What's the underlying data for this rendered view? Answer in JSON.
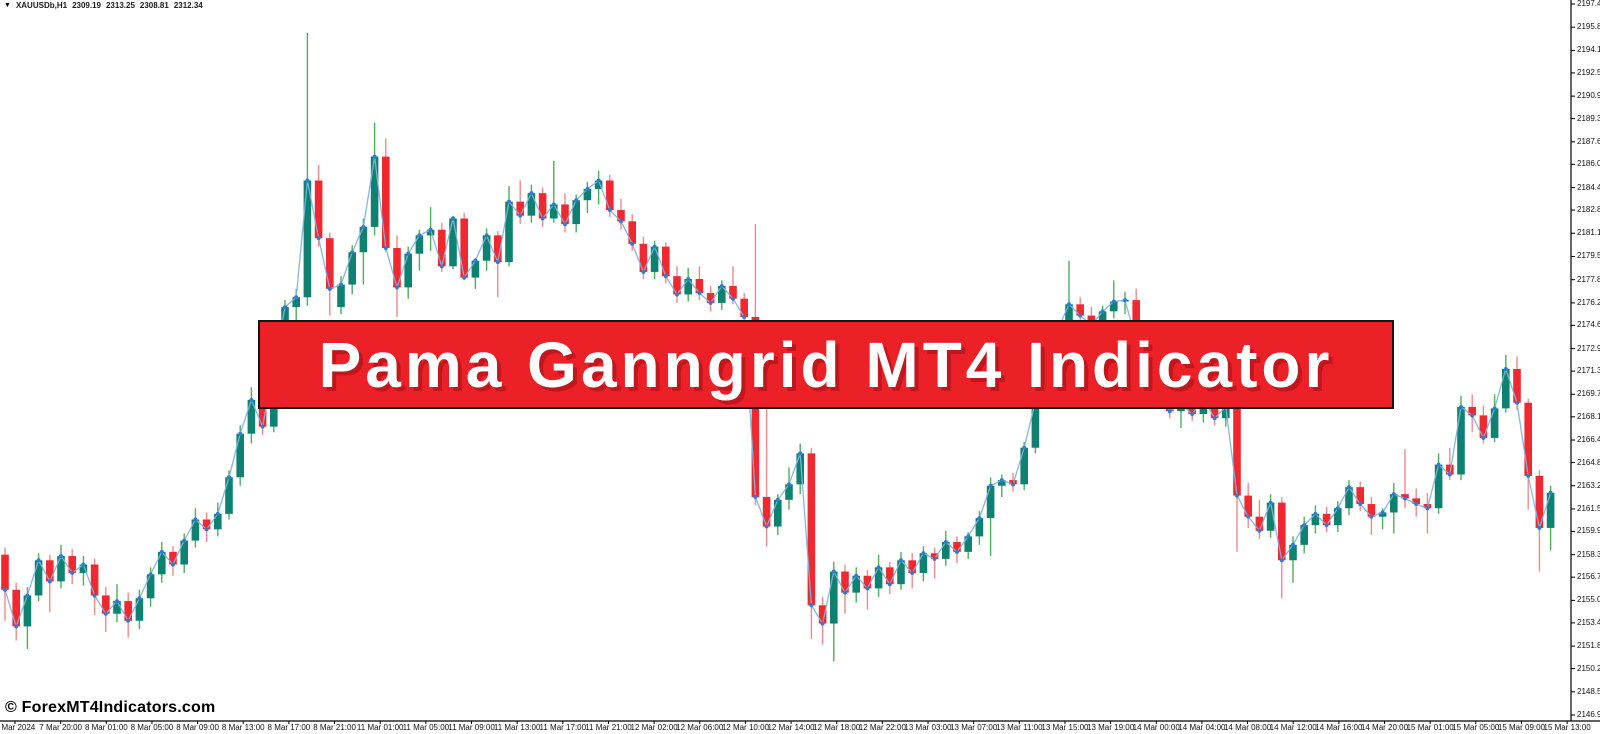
{
  "title_bar": {
    "symbol_timeframe": "XAUUSDb,H1",
    "open": "2309.19",
    "high": "2313.25",
    "low": "2308.81",
    "close": "2312.34"
  },
  "banner": {
    "text": "Pama Ganngrid MT4 Indicator"
  },
  "watermark": {
    "text": "© ForexMT4Indicators.com"
  },
  "colors": {
    "bull_body": "#0f8170",
    "bull_wick": "#4fae5c",
    "bear_body": "#f0282f",
    "bear_wick": "#f2888d",
    "indicator_line": "#7fb3e0",
    "indicator_dot": "#2d7dd2",
    "banner_bg": "#ec2027",
    "banner_border": "#141414",
    "banner_text": "#ffffff",
    "axis_line": "#000000",
    "axis_text": "#111111",
    "background": "#ffffff"
  },
  "chart_data": {
    "type": "candlestick",
    "symbol": "XAUUSDb",
    "timeframe": "H1",
    "indicator_name": "Pama GannGrid line (dots on closes)",
    "price_axis_range": [
      2146.9,
      2197.45
    ],
    "grid": "off",
    "price_axis_labels": [
      "2197.45",
      "2195.80",
      "2194.15",
      "2192.55",
      "2190.90",
      "2189.30",
      "2187.65",
      "2186.05",
      "2184.40",
      "2182.80",
      "2181.15",
      "2179.50",
      "2177.85",
      "2176.20",
      "2174.60",
      "2172.95",
      "2171.35",
      "2169.70",
      "2168.10",
      "2166.45",
      "2164.85",
      "2163.20",
      "2161.55",
      "2159.95",
      "2158.30",
      "2156.70",
      "2155.05",
      "2153.45",
      "2151.80",
      "2150.20",
      "2148.55",
      "2146.90"
    ],
    "time_axis_labels": [
      "7 Mar 2024",
      "7 Mar 20:00",
      "8 Mar 01:00",
      "8 Mar 05:00",
      "8 Mar 09:00",
      "8 Mar 13:00",
      "8 Mar 17:00",
      "8 Mar 21:00",
      "11 Mar 01:00",
      "11 Mar 05:00",
      "11 Mar 09:00",
      "11 Mar 13:00",
      "11 Mar 17:00",
      "11 Mar 21:00",
      "12 Mar 02:00",
      "12 Mar 06:00",
      "12 Mar 10:00",
      "12 Mar 14:00",
      "12 Mar 18:00",
      "12 Mar 22:00",
      "13 Mar 03:00",
      "13 Mar 07:00",
      "13 Mar 11:00",
      "13 Mar 15:00",
      "13 Mar 19:00",
      "14 Mar 00:00",
      "14 Mar 04:00",
      "14 Mar 08:00",
      "14 Mar 12:00",
      "14 Mar 16:00",
      "14 Mar 20:00",
      "15 Mar 01:00",
      "15 Mar 05:00",
      "15 Mar 09:00",
      "15 Mar 13:00"
    ],
    "candles_ohlc": [
      [
        2158.3,
        2158.8,
        2153.6,
        2155.8
      ],
      [
        2155.8,
        2156.3,
        2152.2,
        2153.2
      ],
      [
        2153.2,
        2156.0,
        2151.6,
        2155.4
      ],
      [
        2155.4,
        2158.4,
        2155.0,
        2157.9
      ],
      [
        2157.9,
        2158.3,
        2154.2,
        2156.4
      ],
      [
        2156.4,
        2159.0,
        2155.9,
        2158.2
      ],
      [
        2158.2,
        2158.7,
        2156.2,
        2157.0
      ],
      [
        2157.0,
        2158.2,
        2156.1,
        2157.6
      ],
      [
        2157.6,
        2158.0,
        2154.0,
        2155.4
      ],
      [
        2155.4,
        2156.0,
        2152.8,
        2154.1
      ],
      [
        2154.1,
        2156.2,
        2153.5,
        2155.0
      ],
      [
        2155.0,
        2155.6,
        2152.4,
        2153.6
      ],
      [
        2153.6,
        2155.8,
        2153.0,
        2155.2
      ],
      [
        2155.2,
        2157.4,
        2154.6,
        2156.9
      ],
      [
        2156.9,
        2159.2,
        2156.3,
        2158.5
      ],
      [
        2158.5,
        2158.9,
        2156.8,
        2157.6
      ],
      [
        2157.6,
        2159.8,
        2157.0,
        2159.3
      ],
      [
        2159.3,
        2161.6,
        2158.8,
        2160.8
      ],
      [
        2160.8,
        2161.3,
        2159.2,
        2160.1
      ],
      [
        2160.1,
        2162.0,
        2159.6,
        2161.2
      ],
      [
        2161.2,
        2164.3,
        2160.8,
        2163.8
      ],
      [
        2163.8,
        2167.5,
        2163.2,
        2166.9
      ],
      [
        2166.9,
        2170.2,
        2166.2,
        2169.3
      ],
      [
        2169.3,
        2171.4,
        2166.8,
        2167.4
      ],
      [
        2167.4,
        2172.3,
        2167.0,
        2171.8
      ],
      [
        2171.8,
        2176.4,
        2171.2,
        2175.9
      ],
      [
        2175.9,
        2177.2,
        2174.6,
        2176.6
      ],
      [
        2176.6,
        2195.4,
        2176.0,
        2184.9
      ],
      [
        2184.9,
        2186.0,
        2180.2,
        2180.8
      ],
      [
        2180.8,
        2181.2,
        2175.3,
        2177.2
      ],
      [
        2175.9,
        2178.1,
        2175.4,
        2177.5
      ],
      [
        2177.5,
        2180.3,
        2176.8,
        2179.8
      ],
      [
        2179.8,
        2182.2,
        2177.5,
        2181.6
      ],
      [
        2181.6,
        2189.0,
        2181.0,
        2186.6
      ],
      [
        2186.6,
        2187.9,
        2179.8,
        2180.1
      ],
      [
        2180.1,
        2181.0,
        2175.2,
        2177.3
      ],
      [
        2177.3,
        2180.2,
        2176.5,
        2179.7
      ],
      [
        2179.7,
        2181.4,
        2178.5,
        2181.0
      ],
      [
        2181.0,
        2183.0,
        2179.9,
        2181.4
      ],
      [
        2181.4,
        2181.9,
        2178.4,
        2178.8
      ],
      [
        2178.8,
        2182.4,
        2178.6,
        2182.2
      ],
      [
        2182.2,
        2182.6,
        2177.8,
        2178.0
      ],
      [
        2178.0,
        2179.4,
        2177.2,
        2179.2
      ],
      [
        2179.2,
        2181.5,
        2178.5,
        2181.0
      ],
      [
        2181.0,
        2181.3,
        2176.6,
        2179.1
      ],
      [
        2179.1,
        2184.5,
        2178.8,
        2183.4
      ],
      [
        2183.4,
        2184.9,
        2181.8,
        2182.4
      ],
      [
        2182.4,
        2184.6,
        2181.9,
        2184.0
      ],
      [
        2184.0,
        2184.4,
        2181.6,
        2182.2
      ],
      [
        2182.2,
        2186.3,
        2181.9,
        2183.2
      ],
      [
        2183.2,
        2184.0,
        2181.2,
        2181.8
      ],
      [
        2181.8,
        2183.9,
        2181.2,
        2183.5
      ],
      [
        2183.5,
        2184.8,
        2182.6,
        2184.3
      ],
      [
        2184.3,
        2185.6,
        2183.2,
        2184.9
      ],
      [
        2184.9,
        2185.3,
        2182.3,
        2182.8
      ],
      [
        2182.8,
        2183.6,
        2181.4,
        2182.0
      ],
      [
        2182.0,
        2182.5,
        2179.9,
        2180.4
      ],
      [
        2180.4,
        2180.9,
        2177.9,
        2178.4
      ],
      [
        2178.4,
        2180.6,
        2177.9,
        2180.2
      ],
      [
        2180.2,
        2180.5,
        2177.6,
        2178.1
      ],
      [
        2178.1,
        2178.8,
        2176.2,
        2176.8
      ],
      [
        2176.8,
        2178.7,
        2176.3,
        2177.9
      ],
      [
        2177.9,
        2178.8,
        2176.4,
        2176.9
      ],
      [
        2176.9,
        2177.4,
        2175.6,
        2176.2
      ],
      [
        2176.2,
        2177.8,
        2175.7,
        2177.4
      ],
      [
        2177.4,
        2178.8,
        2176.1,
        2176.5
      ],
      [
        2176.5,
        2176.9,
        2174.8,
        2175.2
      ],
      [
        2175.2,
        2181.8,
        2161.8,
        2162.4
      ],
      [
        2162.4,
        2171.0,
        2158.9,
        2160.3
      ],
      [
        2160.3,
        2162.6,
        2159.7,
        2162.2
      ],
      [
        2162.2,
        2164.5,
        2161.5,
        2163.3
      ],
      [
        2163.3,
        2166.2,
        2162.6,
        2165.5
      ],
      [
        2165.5,
        2165.9,
        2152.3,
        2154.7
      ],
      [
        2154.7,
        2155.3,
        2151.9,
        2153.4
      ],
      [
        2153.4,
        2157.8,
        2150.7,
        2157.1
      ],
      [
        2157.1,
        2157.6,
        2154.1,
        2155.6
      ],
      [
        2155.6,
        2157.4,
        2154.9,
        2156.8
      ],
      [
        2156.8,
        2157.2,
        2154.4,
        2155.9
      ],
      [
        2155.9,
        2158.3,
        2155.3,
        2157.4
      ],
      [
        2157.4,
        2157.8,
        2155.5,
        2156.2
      ],
      [
        2156.2,
        2158.5,
        2155.8,
        2157.9
      ],
      [
        2157.9,
        2158.4,
        2155.9,
        2157.0
      ],
      [
        2157.0,
        2158.9,
        2156.4,
        2158.4
      ],
      [
        2158.4,
        2158.8,
        2156.6,
        2158.0
      ],
      [
        2158.0,
        2160.0,
        2157.5,
        2159.2
      ],
      [
        2159.2,
        2159.6,
        2157.7,
        2158.5
      ],
      [
        2158.5,
        2159.9,
        2158.0,
        2159.6
      ],
      [
        2159.6,
        2161.4,
        2159.0,
        2160.9
      ],
      [
        2160.9,
        2163.8,
        2158.2,
        2163.2
      ],
      [
        2163.2,
        2164.0,
        2162.4,
        2163.6
      ],
      [
        2163.6,
        2164.1,
        2162.8,
        2163.3
      ],
      [
        2163.3,
        2166.3,
        2162.9,
        2165.9
      ],
      [
        2165.9,
        2169.6,
        2165.5,
        2169.2
      ],
      [
        2169.2,
        2172.4,
        2168.8,
        2172.0
      ],
      [
        2172.0,
        2174.8,
        2171.4,
        2174.3
      ],
      [
        2174.3,
        2179.2,
        2173.8,
        2176.1
      ],
      [
        2176.1,
        2176.6,
        2174.2,
        2175.3
      ],
      [
        2175.3,
        2175.9,
        2173.6,
        2174.6
      ],
      [
        2174.6,
        2176.0,
        2174.0,
        2175.6
      ],
      [
        2175.6,
        2177.8,
        2175.1,
        2176.3
      ],
      [
        2176.3,
        2177.0,
        2175.4,
        2176.4
      ],
      [
        2176.4,
        2177.2,
        2172.9,
        2173.5
      ],
      [
        2173.5,
        2174.1,
        2171.6,
        2172.2
      ],
      [
        2172.2,
        2172.8,
        2169.9,
        2170.4
      ],
      [
        2170.4,
        2171.0,
        2168.0,
        2168.5
      ],
      [
        2168.5,
        2169.6,
        2167.3,
        2169.0
      ],
      [
        2169.0,
        2169.8,
        2167.8,
        2168.3
      ],
      [
        2168.3,
        2169.9,
        2167.7,
        2169.4
      ],
      [
        2169.4,
        2170.0,
        2167.5,
        2168.0
      ],
      [
        2168.0,
        2169.7,
        2167.4,
        2168.8
      ],
      [
        2168.8,
        2169.2,
        2158.5,
        2162.5
      ],
      [
        2162.5,
        2163.4,
        2160.2,
        2161.0
      ],
      [
        2161.0,
        2162.2,
        2159.4,
        2160.0
      ],
      [
        2160.0,
        2162.6,
        2159.5,
        2162.0
      ],
      [
        2162.0,
        2162.4,
        2155.2,
        2157.9
      ],
      [
        2157.9,
        2159.6,
        2156.3,
        2159.0
      ],
      [
        2159.0,
        2161.0,
        2158.4,
        2160.4
      ],
      [
        2160.4,
        2161.8,
        2159.8,
        2161.2
      ],
      [
        2161.2,
        2161.7,
        2159.9,
        2160.4
      ],
      [
        2160.4,
        2162.1,
        2159.9,
        2161.6
      ],
      [
        2161.6,
        2163.6,
        2161.1,
        2163.1
      ],
      [
        2163.1,
        2163.5,
        2161.4,
        2161.9
      ],
      [
        2161.9,
        2162.4,
        2159.7,
        2161.0
      ],
      [
        2161.0,
        2161.6,
        2160.1,
        2161.3
      ],
      [
        2161.3,
        2163.4,
        2159.8,
        2162.6
      ],
      [
        2162.6,
        2165.8,
        2161.6,
        2162.3
      ],
      [
        2162.3,
        2163.0,
        2161.0,
        2161.9
      ],
      [
        2161.9,
        2162.7,
        2159.8,
        2161.6
      ],
      [
        2161.6,
        2165.5,
        2161.2,
        2164.7
      ],
      [
        2164.7,
        2165.9,
        2163.6,
        2164.0
      ],
      [
        2164.0,
        2169.6,
        2163.6,
        2168.8
      ],
      [
        2168.8,
        2169.7,
        2167.0,
        2168.2
      ],
      [
        2168.2,
        2168.9,
        2166.2,
        2166.6
      ],
      [
        2166.6,
        2169.7,
        2166.3,
        2168.7
      ],
      [
        2168.7,
        2172.5,
        2168.4,
        2171.5
      ],
      [
        2171.5,
        2172.4,
        2168.6,
        2169.1
      ],
      [
        2169.1,
        2169.4,
        2161.5,
        2163.9
      ],
      [
        2163.9,
        2164.3,
        2157.1,
        2160.2
      ],
      [
        2160.2,
        2163.2,
        2158.6,
        2162.7
      ]
    ]
  }
}
